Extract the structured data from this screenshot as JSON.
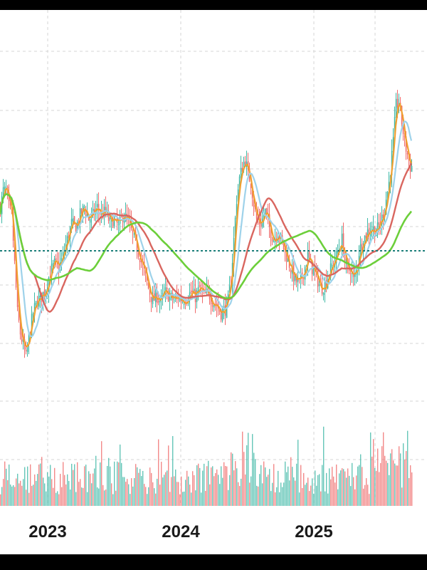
{
  "chart_data": {
    "type": "candlestick",
    "x_ticks": [
      "2023",
      "2024",
      "2025"
    ],
    "grid": true,
    "reference_line": {
      "style": "dotted",
      "color": "#1b7f7a"
    },
    "colors": {
      "up": "#3fb8a6",
      "down": "#ef6b6b",
      "ma_fast": "#f0a030",
      "ma_mid": "#9ed2ea",
      "ma_slow": "#d9665f",
      "ma_long": "#6ccf3a",
      "grid": "#d6d6d6"
    },
    "price_path": [
      [
        0,
        0.56
      ],
      [
        4,
        0.6
      ],
      [
        8,
        0.6
      ],
      [
        12,
        0.56
      ],
      [
        16,
        0.54
      ],
      [
        20,
        0.42
      ],
      [
        24,
        0.3
      ],
      [
        28,
        0.25
      ],
      [
        32,
        0.22
      ],
      [
        36,
        0.19
      ],
      [
        40,
        0.24
      ],
      [
        46,
        0.3
      ],
      [
        52,
        0.33
      ],
      [
        58,
        0.34
      ],
      [
        64,
        0.36
      ],
      [
        70,
        0.4
      ],
      [
        76,
        0.42
      ],
      [
        82,
        0.41
      ],
      [
        88,
        0.44
      ],
      [
        94,
        0.48
      ],
      [
        100,
        0.52
      ],
      [
        106,
        0.51
      ],
      [
        112,
        0.54
      ],
      [
        118,
        0.56
      ],
      [
        124,
        0.53
      ],
      [
        130,
        0.54
      ],
      [
        136,
        0.56
      ],
      [
        142,
        0.54
      ],
      [
        148,
        0.55
      ],
      [
        154,
        0.52
      ],
      [
        160,
        0.53
      ],
      [
        166,
        0.51
      ],
      [
        172,
        0.54
      ],
      [
        178,
        0.53
      ],
      [
        184,
        0.5
      ],
      [
        190,
        0.47
      ],
      [
        196,
        0.44
      ],
      [
        202,
        0.4
      ],
      [
        208,
        0.36
      ],
      [
        214,
        0.33
      ],
      [
        220,
        0.34
      ],
      [
        226,
        0.33
      ],
      [
        232,
        0.35
      ],
      [
        238,
        0.34
      ],
      [
        244,
        0.33
      ],
      [
        250,
        0.34
      ],
      [
        256,
        0.33
      ],
      [
        262,
        0.34
      ],
      [
        268,
        0.35
      ],
      [
        274,
        0.34
      ],
      [
        280,
        0.36
      ],
      [
        286,
        0.34
      ],
      [
        292,
        0.35
      ],
      [
        298,
        0.33
      ],
      [
        304,
        0.32
      ],
      [
        310,
        0.3
      ],
      [
        316,
        0.31
      ],
      [
        320,
        0.33
      ],
      [
        324,
        0.38
      ],
      [
        328,
        0.48
      ],
      [
        332,
        0.58
      ],
      [
        336,
        0.63
      ],
      [
        340,
        0.66
      ],
      [
        344,
        0.68
      ],
      [
        348,
        0.64
      ],
      [
        352,
        0.62
      ],
      [
        356,
        0.57
      ],
      [
        360,
        0.53
      ],
      [
        366,
        0.52
      ],
      [
        372,
        0.55
      ],
      [
        378,
        0.51
      ],
      [
        384,
        0.48
      ],
      [
        390,
        0.5
      ],
      [
        396,
        0.47
      ],
      [
        402,
        0.44
      ],
      [
        408,
        0.41
      ],
      [
        414,
        0.38
      ],
      [
        420,
        0.37
      ],
      [
        426,
        0.4
      ],
      [
        432,
        0.44
      ],
      [
        438,
        0.41
      ],
      [
        444,
        0.39
      ],
      [
        450,
        0.36
      ],
      [
        456,
        0.37
      ],
      [
        462,
        0.4
      ],
      [
        468,
        0.42
      ],
      [
        474,
        0.45
      ],
      [
        480,
        0.48
      ],
      [
        484,
        0.43
      ],
      [
        488,
        0.4
      ],
      [
        492,
        0.41
      ],
      [
        496,
        0.38
      ],
      [
        500,
        0.4
      ],
      [
        504,
        0.45
      ],
      [
        510,
        0.48
      ],
      [
        516,
        0.5
      ],
      [
        522,
        0.51
      ],
      [
        528,
        0.5
      ],
      [
        534,
        0.52
      ],
      [
        540,
        0.56
      ],
      [
        546,
        0.62
      ],
      [
        552,
        0.72
      ],
      [
        556,
        0.81
      ],
      [
        560,
        0.82
      ],
      [
        564,
        0.77
      ],
      [
        568,
        0.72
      ],
      [
        572,
        0.69
      ],
      [
        576,
        0.66
      ]
    ]
  }
}
